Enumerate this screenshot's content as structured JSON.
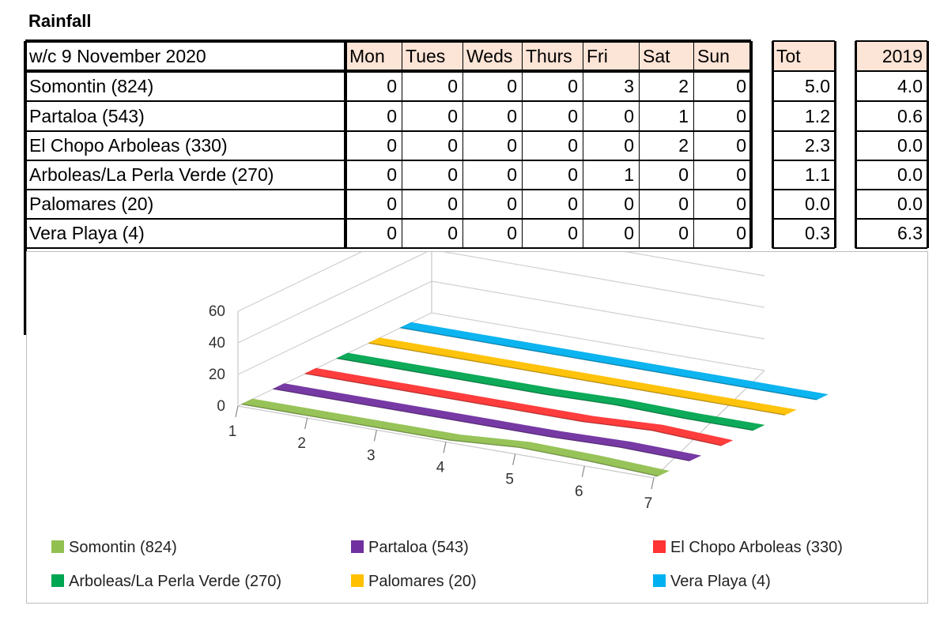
{
  "title": "Rainfall",
  "table": {
    "corner": "w/c 9 November 2020",
    "days": [
      "Mon",
      "Tues",
      "Weds",
      "Thurs",
      "Fri",
      "Sat",
      "Sun"
    ],
    "tot_header": "Tot",
    "prev_header": "2019",
    "rows": [
      {
        "station": "Somontin (824)",
        "values": [
          "0",
          "0",
          "0",
          "0",
          "3",
          "2",
          "0"
        ],
        "tot": "5.0",
        "prev": "4.0"
      },
      {
        "station": "Partaloa (543)",
        "values": [
          "0",
          "0",
          "0",
          "0",
          "0",
          "1",
          "0"
        ],
        "tot": "1.2",
        "prev": "0.6"
      },
      {
        "station": "El Chopo Arboleas (330)",
        "values": [
          "0",
          "0",
          "0",
          "0",
          "0",
          "2",
          "0"
        ],
        "tot": "2.3",
        "prev": "0.0"
      },
      {
        "station": "Arboleas/La Perla Verde (270)",
        "values": [
          "0",
          "0",
          "0",
          "0",
          "1",
          "0",
          "0"
        ],
        "tot": "1.1",
        "prev": "0.0"
      },
      {
        "station": "Palomares (20)",
        "values": [
          "0",
          "0",
          "0",
          "0",
          "0",
          "0",
          "0"
        ],
        "tot": "0.0",
        "prev": "0.0"
      },
      {
        "station": "Vera Playa (4)",
        "values": [
          "0",
          "0",
          "0",
          "0",
          "0",
          "0",
          "0"
        ],
        "tot": "0.3",
        "prev": "6.3"
      }
    ]
  },
  "chart_data": {
    "type": "area",
    "style": "3d-ribbon",
    "categories": [
      "1",
      "2",
      "3",
      "4",
      "5",
      "6",
      "7"
    ],
    "y_ticks": [
      "0",
      "20",
      "40",
      "60"
    ],
    "ylim": [
      0,
      60
    ],
    "grid": true,
    "legend_position": "bottom",
    "series": [
      {
        "name": "Somontin (824)",
        "color": "#92c050",
        "values": [
          0,
          0,
          0,
          0,
          3,
          2,
          0
        ]
      },
      {
        "name": "Partaloa (543)",
        "color": "#7030a0",
        "values": [
          0,
          0,
          0,
          0,
          0,
          1,
          0
        ]
      },
      {
        "name": "El Chopo Arboleas (330)",
        "color": "#ff3333",
        "values": [
          0,
          0,
          0,
          0,
          0,
          2,
          0
        ]
      },
      {
        "name": "Arboleas/La Perla Verde (270)",
        "color": "#00a651",
        "values": [
          0,
          0,
          0,
          0,
          1,
          0,
          0
        ]
      },
      {
        "name": "Palomares (20)",
        "color": "#ffc000",
        "values": [
          0,
          0,
          0,
          0,
          0,
          0,
          0
        ]
      },
      {
        "name": "Vera Playa (4)",
        "color": "#00b0f0",
        "values": [
          0,
          0,
          0,
          0,
          0,
          0,
          0
        ]
      }
    ]
  }
}
